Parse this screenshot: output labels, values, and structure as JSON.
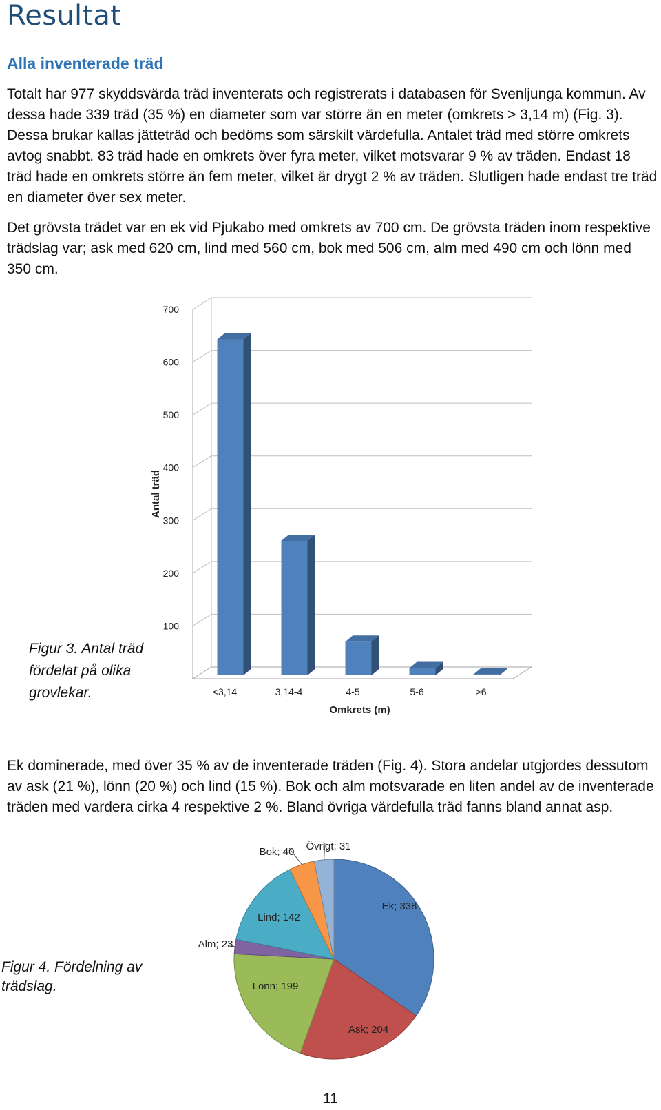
{
  "document": {
    "title": "Resultat",
    "heading": "Alla inventerade träd",
    "paragraphs": [
      "Totalt har 977 skyddsvärda träd inventerats och registrerats i databasen för Svenljunga kommun. Av dessa hade 339 träd (35 %) en diameter som var större än en meter (omkrets > 3,14 m) (Fig. 3). Dessa brukar kallas jätteträd och bedöms som särskilt värdefulla. Antalet träd med större omkrets avtog snabbt. 83 träd hade en omkrets över fyra meter, vilket motsvarar 9 % av träden. Endast 18 träd hade en omkrets större än fem meter, vilket är drygt 2 % av träden. Slutligen hade endast tre träd en diameter över sex meter.",
      "Det grövsta trädet var en ek vid Pjukabo med omkrets av 700 cm. De grövsta träden inom respektive trädslag var; ask med 620 cm, lind med 560 cm, bok med 506 cm, alm med 490 cm och lönn med 350 cm.",
      "Ek dominerade, med över 35 % av de inventerade träden (Fig. 4). Stora andelar utgjordes dessutom av ask (21 %), lönn (20 %) och lind (15 %). Bok och alm motsvarade en liten andel av de inventerade träden med vardera cirka 4 respektive 2 %. Bland övriga värdefulla träd fanns bland annat asp."
    ],
    "figure3_caption": "Figur 3. Antal träd fördelat på olika grovlekar.",
    "figure4_caption": "Figur 4. Fördelning av trädslag.",
    "page_number": "11"
  },
  "chart_data": [
    {
      "type": "bar",
      "categories": [
        "<3,14",
        "3,14-4",
        "4-5",
        "5-6",
        ">6"
      ],
      "values": [
        638,
        256,
        65,
        15,
        3
      ],
      "xlabel": "Omkrets (m)",
      "ylabel": "Antal träd",
      "ylim": [
        0,
        700
      ],
      "yticks": [
        100,
        200,
        300,
        400,
        500,
        600,
        700
      ],
      "grid": true,
      "bar_color": "#4f81bd"
    },
    {
      "type": "pie",
      "slices": [
        {
          "label": "Ek; 338",
          "value": 338,
          "color": "#4f81bd"
        },
        {
          "label": "Ask; 204",
          "value": 204,
          "color": "#c0504d"
        },
        {
          "label": "Lönn; 199",
          "value": 199,
          "color": "#9bbb59"
        },
        {
          "label": "Alm; 23",
          "value": 23,
          "color": "#8064a2"
        },
        {
          "label": "Lind; 142",
          "value": 142,
          "color": "#4bacc6"
        },
        {
          "label": "Bok; 40",
          "value": 40,
          "color": "#f79646"
        },
        {
          "label": "Övrigt; 31",
          "value": 31,
          "color": "#95b3d7"
        }
      ]
    }
  ]
}
